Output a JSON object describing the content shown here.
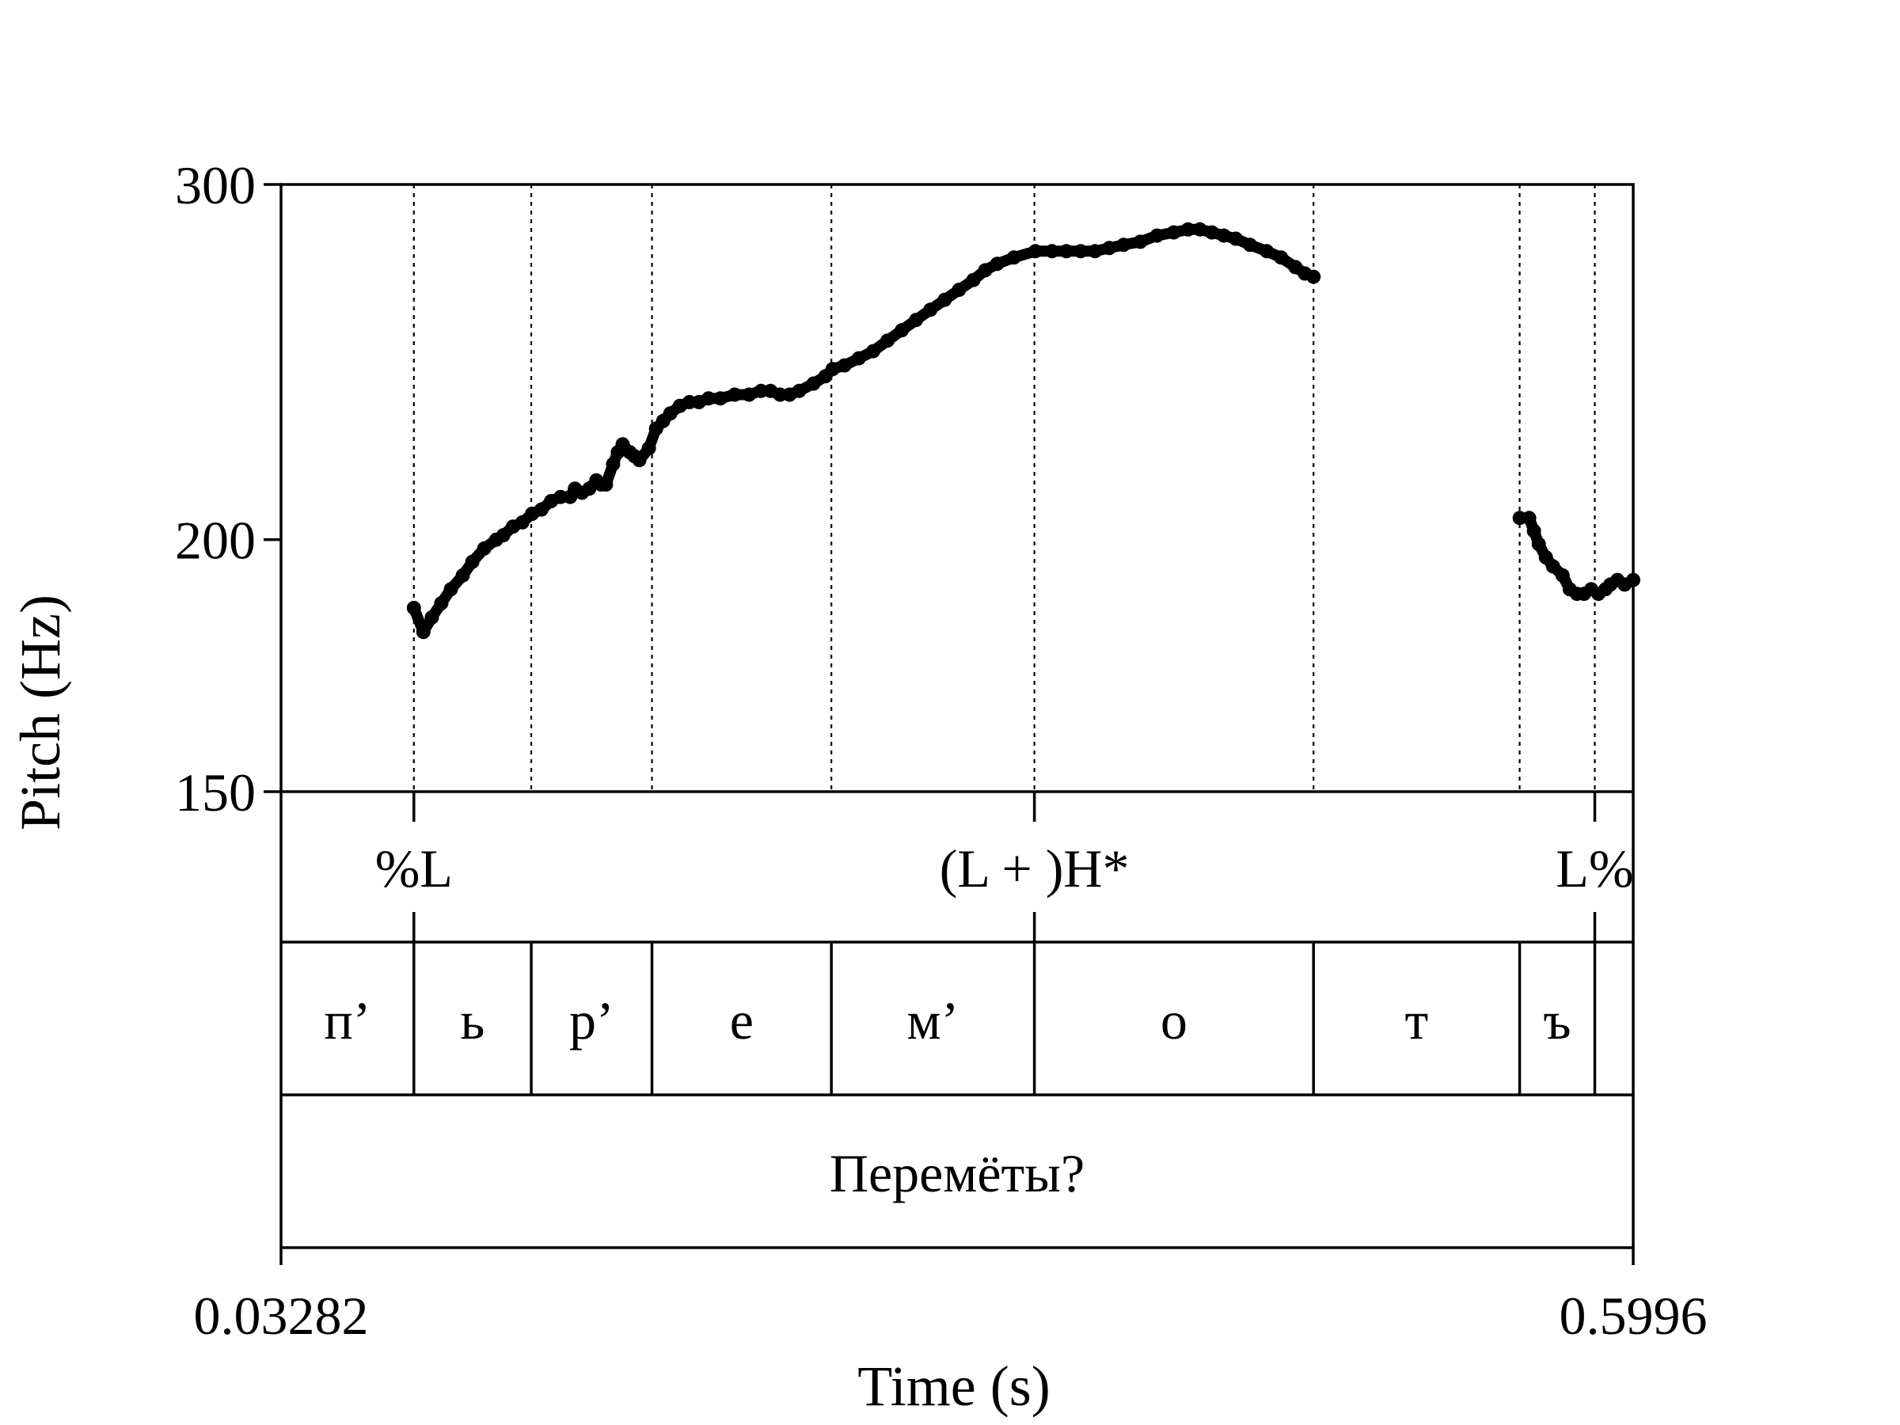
{
  "chart_data": {
    "type": "line",
    "ylabel": "Pitch (Hz)",
    "xlabel": "Time (s)",
    "xlim": [
      0.03282,
      0.5996
    ],
    "x_tick_labels": [
      "0.03282",
      "0.5996"
    ],
    "ylim": [
      150,
      300
    ],
    "y_scale": "log",
    "y_ticks": [
      150,
      200,
      300
    ],
    "y_tick_labels": [
      "150",
      "200",
      "300"
    ],
    "grid": false,
    "boundary_times": [
      0.0885,
      0.1377,
      0.1883,
      0.2635,
      0.3486,
      0.4656,
      0.552,
      0.5835
    ],
    "series": [
      {
        "segments": [
          [
            [
              0.0885,
              185
            ],
            [
              0.0925,
              180
            ],
            [
              0.096,
              183
            ],
            [
              0.1,
              186
            ],
            [
              0.104,
              189
            ],
            [
              0.109,
              192
            ],
            [
              0.113,
              195
            ],
            [
              0.118,
              198
            ],
            [
              0.123,
              200
            ],
            [
              0.126,
              201
            ],
            [
              0.13,
              203
            ],
            [
              0.134,
              204
            ],
            [
              0.138,
              206
            ],
            [
              0.142,
              207
            ],
            [
              0.146,
              209
            ],
            [
              0.15,
              210
            ],
            [
              0.154,
              210
            ],
            [
              0.156,
              212
            ],
            [
              0.159,
              211
            ],
            [
              0.162,
              212
            ],
            [
              0.165,
              214
            ],
            [
              0.167,
              213
            ],
            [
              0.169,
              213
            ],
            [
              0.172,
              218
            ],
            [
              0.174,
              221
            ],
            [
              0.176,
              223
            ],
            [
              0.179,
              221
            ],
            [
              0.181,
              220
            ],
            [
              0.183,
              219
            ],
            [
              0.187,
              222
            ],
            [
              0.19,
              227
            ],
            [
              0.193,
              229
            ],
            [
              0.196,
              231
            ],
            [
              0.2,
              233
            ],
            [
              0.204,
              234
            ],
            [
              0.208,
              234
            ],
            [
              0.212,
              235
            ],
            [
              0.217,
              235
            ],
            [
              0.223,
              236
            ],
            [
              0.229,
              236
            ],
            [
              0.234,
              237
            ],
            [
              0.238,
              237
            ],
            [
              0.242,
              236
            ],
            [
              0.246,
              236
            ],
            [
              0.25,
              237
            ],
            [
              0.256,
              239
            ],
            [
              0.261,
              241
            ],
            [
              0.264,
              243
            ],
            [
              0.269,
              244
            ],
            [
              0.275,
              246
            ],
            [
              0.281,
              248
            ],
            [
              0.287,
              251
            ],
            [
              0.293,
              254
            ],
            [
              0.299,
              257
            ],
            [
              0.305,
              260
            ],
            [
              0.311,
              263
            ],
            [
              0.317,
              266
            ],
            [
              0.323,
              269
            ],
            [
              0.328,
              272
            ],
            [
              0.333,
              274
            ],
            [
              0.34,
              276
            ],
            [
              0.349,
              278
            ],
            [
              0.356,
              278
            ],
            [
              0.362,
              278
            ],
            [
              0.368,
              278
            ],
            [
              0.374,
              278
            ],
            [
              0.38,
              279
            ],
            [
              0.386,
              280
            ],
            [
              0.393,
              281
            ],
            [
              0.4,
              283
            ],
            [
              0.407,
              284
            ],
            [
              0.413,
              285
            ],
            [
              0.418,
              285
            ],
            [
              0.423,
              284
            ],
            [
              0.428,
              283
            ],
            [
              0.433,
              282
            ],
            [
              0.439,
              280
            ],
            [
              0.446,
              278
            ],
            [
              0.452,
              276
            ],
            [
              0.458,
              273
            ],
            [
              0.462,
              271
            ],
            [
              0.4656,
              270
            ]
          ],
          [
            [
              0.552,
              205
            ],
            [
              0.556,
              205
            ],
            [
              0.558,
              202
            ],
            [
              0.56,
              199
            ],
            [
              0.563,
              196
            ],
            [
              0.566,
              194
            ],
            [
              0.57,
              192
            ],
            [
              0.573,
              189
            ],
            [
              0.576,
              188
            ],
            [
              0.579,
              188
            ],
            [
              0.582,
              189
            ],
            [
              0.585,
              188
            ],
            [
              0.588,
              189
            ],
            [
              0.59,
              190
            ],
            [
              0.593,
              191
            ],
            [
              0.596,
              190
            ],
            [
              0.5996,
              191
            ]
          ]
        ]
      }
    ]
  },
  "tiers": {
    "tones": [
      {
        "label": "%L",
        "time": 0.0885
      },
      {
        "label": "(L + )H*",
        "time": 0.3486
      },
      {
        "label": "L%",
        "time": 0.5835
      }
    ],
    "segments": [
      "п’",
      "ь",
      "р’",
      "е",
      "м’",
      "о",
      "т",
      "ъ"
    ],
    "word": "Перемёты?"
  }
}
